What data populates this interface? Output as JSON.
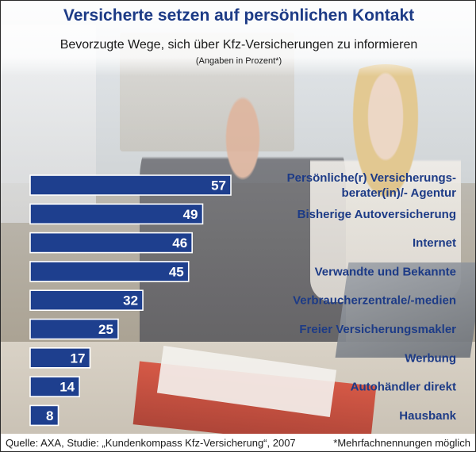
{
  "header": {
    "title": "Versicherte setzen auf persönlichen Kontakt",
    "subtitle": "Bevorzugte Wege, sich über Kfz-Versicherungen zu informieren",
    "unit": "(Angaben in Prozent*)"
  },
  "footer": {
    "source": "Quelle: AXA, Studie: „Kundenkompass Kfz-Versicherung“, 2007",
    "footnote": "*Mehrfachnennungen möglich"
  },
  "colors": {
    "bar": "#1e3f8e",
    "title": "#1d3b86"
  },
  "chart_data": {
    "type": "bar",
    "orientation": "horizontal",
    "title": "Versicherte setzen auf persönlichen Kontakt",
    "subtitle": "Bevorzugte Wege, sich über Kfz-Versicherungen zu informieren",
    "unit": "Prozent",
    "categories": [
      [
        "Persönliche(r) Versicherungs-",
        "berater(in)/- Agentur"
      ],
      [
        "Bisherige Autoversicherung"
      ],
      [
        "Internet"
      ],
      [
        "Verwandte und Bekannte"
      ],
      [
        "Verbraucherzentrale/-medien"
      ],
      [
        "Freier Versicherungsmakler"
      ],
      [
        "Werbung"
      ],
      [
        "Autohändler direkt"
      ],
      [
        "Hausbank"
      ]
    ],
    "values": [
      57,
      49,
      46,
      45,
      32,
      25,
      17,
      14,
      8
    ],
    "data_labels": true,
    "grid": false,
    "legend": "none"
  }
}
